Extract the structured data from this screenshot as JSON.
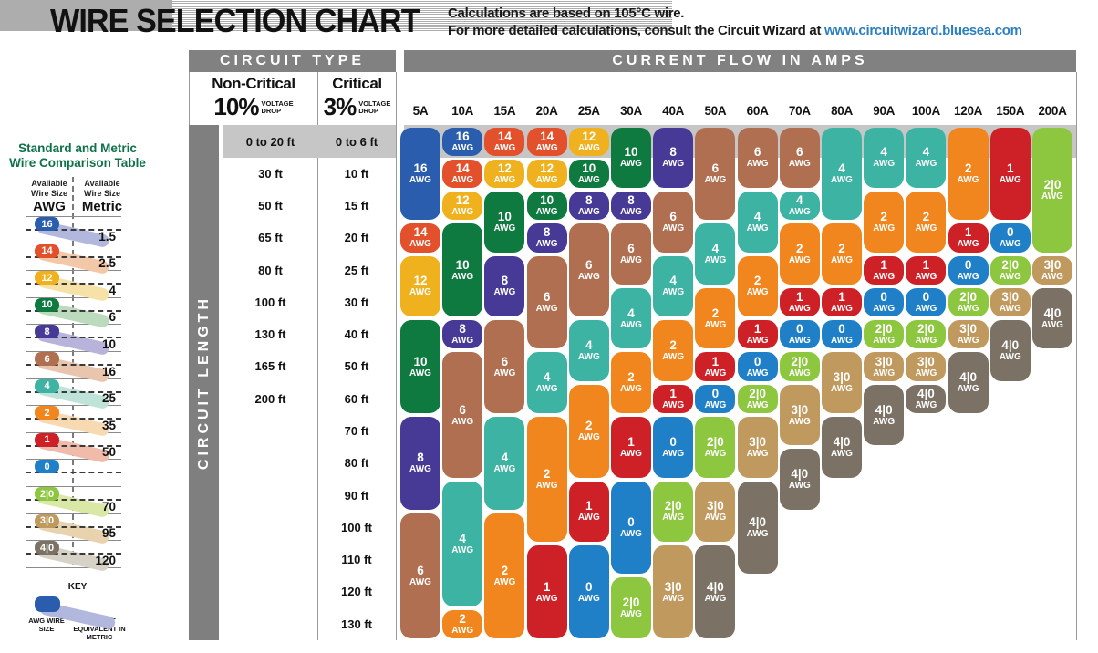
{
  "title": "WIRE SELECTION CHART",
  "subtitle_line1": "Calculations are based on 105°C wire.",
  "subtitle_line2_prefix": "For more detailed calculations, consult the Circuit Wizard at ",
  "subtitle_link": "www.circuitwizard.bluesea.com",
  "comparison_table": {
    "title_line1": "Standard and Metric",
    "title_line2": "Wire Comparison Table",
    "col1_header": "Available Wire Size",
    "col1_unit": "AWG",
    "col2_header": "Available Wire Size",
    "col2_unit": "Metric",
    "rows": [
      {
        "awg": "16",
        "metric": "1.5",
        "color": "#2a5dad",
        "trail": "#b2b8dd"
      },
      {
        "awg": "14",
        "metric": "2.5",
        "color": "#e2512b",
        "trail": "#f3c8a8"
      },
      {
        "awg": "12",
        "metric": "4",
        "color": "#efb11d",
        "trail": "#f6e2a6"
      },
      {
        "awg": "10",
        "metric": "6",
        "color": "#0e7a40",
        "trail": "#bcdabc"
      },
      {
        "awg": "8",
        "metric": "10",
        "color": "#473a96",
        "trail": "#b8b3da"
      },
      {
        "awg": "6",
        "metric": "16",
        "color": "#b06f50",
        "trail": "#eac5ad"
      },
      {
        "awg": "4",
        "metric": "25",
        "color": "#3db3a3",
        "trail": "#bfe3d9"
      },
      {
        "awg": "2",
        "metric": "35",
        "color": "#f0861d",
        "trail": "#f8dab2"
      },
      {
        "awg": "1",
        "metric": "50",
        "color": "#cd2127",
        "trail": "#f1bbac"
      },
      {
        "awg": "0",
        "metric": "",
        "color": "#1f80c8",
        "trail": ""
      },
      {
        "awg": "2|0",
        "metric": "70",
        "color": "#8dc63f",
        "trail": "#dae8a6"
      },
      {
        "awg": "3|0",
        "metric": "95",
        "color": "#c0995e",
        "trail": "#e8d3ae"
      },
      {
        "awg": "4|0",
        "metric": "120",
        "color": "#7b7265",
        "trail": "#d6d2c6"
      }
    ],
    "key": {
      "title": "KEY",
      "left_label": "AWG WIRE SIZE",
      "right_label": "CLOSEST EQUIVALENT IN METRIC",
      "left_color": "#2a5dad",
      "right_color": "#b2b8dd"
    }
  },
  "table": {
    "circuit_type_header": "CIRCUIT TYPE",
    "current_flow_header": "CURRENT FLOW IN AMPS",
    "non_critical_label": "Non-Critical",
    "non_critical_pct": "10%",
    "critical_label": "Critical",
    "critical_pct": "3%",
    "voltage_word": "VOLTAGE",
    "drop_word": "DROP",
    "circuit_length_label": "CIRCUIT LENGTH",
    "row_labels_non_critical": [
      "0 to 20 ft",
      "30 ft",
      "50 ft",
      "65 ft",
      "80 ft",
      "100 ft",
      "130 ft",
      "165 ft",
      "200 ft",
      "",
      "",
      "",
      "",
      "",
      "",
      ""
    ],
    "row_labels_critical": [
      "0 to 6 ft",
      "10 ft",
      "15 ft",
      "20 ft",
      "25 ft",
      "30 ft",
      "40 ft",
      "50 ft",
      "60 ft",
      "70 ft",
      "80 ft",
      "90 ft",
      "100 ft",
      "110 ft",
      "120 ft",
      "130 ft"
    ]
  },
  "chart_data": {
    "type": "table",
    "title": "WIRE SELECTION CHART",
    "x_axis_label": "CURRENT FLOW IN AMPS",
    "y_axis_label": "CIRCUIT LENGTH",
    "highlight_row": 1,
    "amp_columns": [
      "5A",
      "10A",
      "15A",
      "20A",
      "25A",
      "30A",
      "40A",
      "50A",
      "60A",
      "70A",
      "80A",
      "90A",
      "100A",
      "120A",
      "150A",
      "200A"
    ],
    "wire_colors": {
      "16": "#2a5dad",
      "14": "#e2512b",
      "12": "#efb11d",
      "10": "#0e7a40",
      "8": "#473a96",
      "6": "#b06f50",
      "4": "#3db3a3",
      "2": "#f0861d",
      "1": "#cd2127",
      "0": "#1f80c8",
      "2|0": "#8dc63f",
      "3|0": "#c0995e",
      "4|0": "#7b7265"
    },
    "columns": [
      {
        "amps": "5A",
        "segments": [
          {
            "awg": "16",
            "rows": [
              1,
              3
            ]
          },
          {
            "awg": "14",
            "rows": [
              4,
              4
            ]
          },
          {
            "awg": "12",
            "rows": [
              5,
              6
            ]
          },
          {
            "awg": "10",
            "rows": [
              7,
              9
            ]
          },
          {
            "awg": "8",
            "rows": [
              10,
              12
            ]
          },
          {
            "awg": "6",
            "rows": [
              13,
              16
            ]
          }
        ]
      },
      {
        "amps": "10A",
        "segments": [
          {
            "awg": "16",
            "rows": [
              1,
              1
            ]
          },
          {
            "awg": "14",
            "rows": [
              2,
              2
            ]
          },
          {
            "awg": "12",
            "rows": [
              3,
              3
            ]
          },
          {
            "awg": "10",
            "rows": [
              4,
              6
            ]
          },
          {
            "awg": "8",
            "rows": [
              7,
              7
            ]
          },
          {
            "awg": "6",
            "rows": [
              8,
              11
            ]
          },
          {
            "awg": "4",
            "rows": [
              12,
              15
            ]
          },
          {
            "awg": "2",
            "rows": [
              16,
              16
            ]
          }
        ]
      },
      {
        "amps": "15A",
        "segments": [
          {
            "awg": "14",
            "rows": [
              1,
              1
            ]
          },
          {
            "awg": "12",
            "rows": [
              2,
              2
            ]
          },
          {
            "awg": "10",
            "rows": [
              3,
              4
            ]
          },
          {
            "awg": "8",
            "rows": [
              5,
              6
            ]
          },
          {
            "awg": "6",
            "rows": [
              7,
              9
            ]
          },
          {
            "awg": "4",
            "rows": [
              10,
              12
            ]
          },
          {
            "awg": "2",
            "rows": [
              13,
              16
            ]
          }
        ]
      },
      {
        "amps": "20A",
        "segments": [
          {
            "awg": "14",
            "rows": [
              1,
              1
            ]
          },
          {
            "awg": "12",
            "rows": [
              2,
              2
            ]
          },
          {
            "awg": "10",
            "rows": [
              3,
              3
            ]
          },
          {
            "awg": "8",
            "rows": [
              4,
              4
            ]
          },
          {
            "awg": "6",
            "rows": [
              5,
              7
            ]
          },
          {
            "awg": "4",
            "rows": [
              8,
              9
            ]
          },
          {
            "awg": "2",
            "rows": [
              10,
              13
            ]
          },
          {
            "awg": "1",
            "rows": [
              14,
              16
            ]
          }
        ]
      },
      {
        "amps": "25A",
        "segments": [
          {
            "awg": "12",
            "rows": [
              1,
              1
            ]
          },
          {
            "awg": "10",
            "rows": [
              2,
              2
            ]
          },
          {
            "awg": "8",
            "rows": [
              3,
              3
            ]
          },
          {
            "awg": "6",
            "rows": [
              4,
              6
            ]
          },
          {
            "awg": "4",
            "rows": [
              7,
              8
            ]
          },
          {
            "awg": "2",
            "rows": [
              9,
              11
            ]
          },
          {
            "awg": "1",
            "rows": [
              12,
              13
            ]
          },
          {
            "awg": "0",
            "rows": [
              14,
              16
            ]
          }
        ]
      },
      {
        "amps": "30A",
        "segments": [
          {
            "awg": "10",
            "rows": [
              1,
              2
            ]
          },
          {
            "awg": "8",
            "rows": [
              3,
              3
            ]
          },
          {
            "awg": "6",
            "rows": [
              4,
              5
            ]
          },
          {
            "awg": "4",
            "rows": [
              6,
              7
            ]
          },
          {
            "awg": "2",
            "rows": [
              8,
              9
            ]
          },
          {
            "awg": "1",
            "rows": [
              10,
              11
            ]
          },
          {
            "awg": "0",
            "rows": [
              12,
              14
            ]
          },
          {
            "awg": "2|0",
            "rows": [
              15,
              16
            ]
          }
        ]
      },
      {
        "amps": "40A",
        "segments": [
          {
            "awg": "8",
            "rows": [
              1,
              2
            ]
          },
          {
            "awg": "6",
            "rows": [
              3,
              4
            ]
          },
          {
            "awg": "4",
            "rows": [
              5,
              6
            ]
          },
          {
            "awg": "2",
            "rows": [
              7,
              8
            ]
          },
          {
            "awg": "1",
            "rows": [
              9,
              9
            ]
          },
          {
            "awg": "0",
            "rows": [
              10,
              11
            ]
          },
          {
            "awg": "2|0",
            "rows": [
              12,
              13
            ]
          },
          {
            "awg": "3|0",
            "rows": [
              14,
              16
            ]
          }
        ]
      },
      {
        "amps": "50A",
        "segments": [
          {
            "awg": "6",
            "rows": [
              1,
              3
            ]
          },
          {
            "awg": "4",
            "rows": [
              4,
              5
            ]
          },
          {
            "awg": "2",
            "rows": [
              6,
              7
            ]
          },
          {
            "awg": "1",
            "rows": [
              8,
              8
            ]
          },
          {
            "awg": "0",
            "rows": [
              9,
              9
            ]
          },
          {
            "awg": "2|0",
            "rows": [
              10,
              11
            ]
          },
          {
            "awg": "3|0",
            "rows": [
              12,
              13
            ]
          },
          {
            "awg": "4|0",
            "rows": [
              14,
              16
            ]
          }
        ]
      },
      {
        "amps": "60A",
        "segments": [
          {
            "awg": "6",
            "rows": [
              1,
              2
            ]
          },
          {
            "awg": "4",
            "rows": [
              3,
              4
            ]
          },
          {
            "awg": "2",
            "rows": [
              5,
              6
            ]
          },
          {
            "awg": "1",
            "rows": [
              7,
              7
            ]
          },
          {
            "awg": "0",
            "rows": [
              8,
              8
            ]
          },
          {
            "awg": "2|0",
            "rows": [
              9,
              9
            ]
          },
          {
            "awg": "3|0",
            "rows": [
              10,
              11
            ]
          },
          {
            "awg": "4|0",
            "rows": [
              12,
              14
            ]
          }
        ]
      },
      {
        "amps": "70A",
        "segments": [
          {
            "awg": "6",
            "rows": [
              1,
              2
            ]
          },
          {
            "awg": "4",
            "rows": [
              3,
              3
            ]
          },
          {
            "awg": "2",
            "rows": [
              4,
              5
            ]
          },
          {
            "awg": "1",
            "rows": [
              6,
              6
            ]
          },
          {
            "awg": "0",
            "rows": [
              7,
              7
            ]
          },
          {
            "awg": "2|0",
            "rows": [
              8,
              8
            ]
          },
          {
            "awg": "3|0",
            "rows": [
              9,
              10
            ]
          },
          {
            "awg": "4|0",
            "rows": [
              11,
              12
            ]
          }
        ]
      },
      {
        "amps": "80A",
        "segments": [
          {
            "awg": "4",
            "rows": [
              1,
              3
            ]
          },
          {
            "awg": "2",
            "rows": [
              4,
              5
            ]
          },
          {
            "awg": "1",
            "rows": [
              6,
              6
            ]
          },
          {
            "awg": "0",
            "rows": [
              7,
              7
            ]
          },
          {
            "awg": "3|0",
            "rows": [
              8,
              9
            ]
          },
          {
            "awg": "4|0",
            "rows": [
              10,
              11
            ]
          }
        ]
      },
      {
        "amps": "90A",
        "segments": [
          {
            "awg": "4",
            "rows": [
              1,
              2
            ]
          },
          {
            "awg": "2",
            "rows": [
              3,
              4
            ]
          },
          {
            "awg": "1",
            "rows": [
              5,
              5
            ]
          },
          {
            "awg": "0",
            "rows": [
              6,
              6
            ]
          },
          {
            "awg": "2|0",
            "rows": [
              7,
              7
            ]
          },
          {
            "awg": "3|0",
            "rows": [
              8,
              8
            ]
          },
          {
            "awg": "4|0",
            "rows": [
              9,
              10
            ]
          }
        ]
      },
      {
        "amps": "100A",
        "segments": [
          {
            "awg": "4",
            "rows": [
              1,
              2
            ]
          },
          {
            "awg": "2",
            "rows": [
              3,
              4
            ]
          },
          {
            "awg": "1",
            "rows": [
              5,
              5
            ]
          },
          {
            "awg": "0",
            "rows": [
              6,
              6
            ]
          },
          {
            "awg": "2|0",
            "rows": [
              7,
              7
            ]
          },
          {
            "awg": "3|0",
            "rows": [
              8,
              8
            ]
          },
          {
            "awg": "4|0",
            "rows": [
              9,
              9
            ]
          }
        ]
      },
      {
        "amps": "120A",
        "segments": [
          {
            "awg": "2",
            "rows": [
              1,
              3
            ]
          },
          {
            "awg": "1",
            "rows": [
              4,
              4
            ]
          },
          {
            "awg": "0",
            "rows": [
              5,
              5
            ]
          },
          {
            "awg": "2|0",
            "rows": [
              6,
              6
            ]
          },
          {
            "awg": "3|0",
            "rows": [
              7,
              7
            ]
          },
          {
            "awg": "4|0",
            "rows": [
              8,
              9
            ]
          }
        ]
      },
      {
        "amps": "150A",
        "segments": [
          {
            "awg": "1",
            "rows": [
              1,
              3
            ]
          },
          {
            "awg": "0",
            "rows": [
              4,
              4
            ]
          },
          {
            "awg": "2|0",
            "rows": [
              5,
              5
            ]
          },
          {
            "awg": "3|0",
            "rows": [
              6,
              6
            ]
          },
          {
            "awg": "4|0",
            "rows": [
              7,
              8
            ]
          }
        ]
      },
      {
        "amps": "200A",
        "segments": [
          {
            "awg": "2|0",
            "rows": [
              1,
              4
            ]
          },
          {
            "awg": "3|0",
            "rows": [
              5,
              5
            ]
          },
          {
            "awg": "4|0",
            "rows": [
              6,
              7
            ]
          }
        ]
      }
    ]
  }
}
